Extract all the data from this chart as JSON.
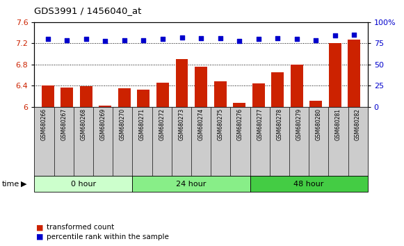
{
  "title": "GDS3991 / 1456040_at",
  "samples": [
    "GSM680266",
    "GSM680267",
    "GSM680268",
    "GSM680269",
    "GSM680270",
    "GSM680271",
    "GSM680272",
    "GSM680273",
    "GSM680274",
    "GSM680275",
    "GSM680276",
    "GSM680277",
    "GSM680278",
    "GSM680279",
    "GSM680280",
    "GSM680281",
    "GSM680282"
  ],
  "bar_values": [
    6.4,
    6.37,
    6.39,
    6.02,
    6.35,
    6.33,
    6.46,
    6.9,
    6.76,
    6.49,
    6.08,
    6.44,
    6.65,
    6.8,
    6.12,
    7.2,
    7.27
  ],
  "percentile_values": [
    80,
    79,
    80,
    78,
    79,
    79,
    80,
    82,
    81,
    81,
    78,
    80,
    81,
    80,
    79,
    84,
    85
  ],
  "ylim_left": [
    6.0,
    7.6
  ],
  "ylim_right": [
    0,
    100
  ],
  "yticks_left": [
    6.0,
    6.4,
    6.8,
    7.2,
    7.6
  ],
  "yticks_right": [
    0,
    25,
    50,
    75,
    100
  ],
  "ytick_labels_left": [
    "6",
    "6.4",
    "6.8",
    "7.2",
    "7.6"
  ],
  "ytick_labels_right": [
    "0",
    "25",
    "50",
    "75",
    "100%"
  ],
  "bar_color": "#cc2200",
  "dot_color": "#0000cc",
  "groups": [
    {
      "label": "0 hour",
      "start": 0,
      "end": 4,
      "color": "#ccffcc"
    },
    {
      "label": "24 hour",
      "start": 5,
      "end": 10,
      "color": "#88ee88"
    },
    {
      "label": "48 hour",
      "start": 11,
      "end": 16,
      "color": "#44cc44"
    }
  ],
  "legend_bar_label": "transformed count",
  "legend_dot_label": "percentile rank within the sample"
}
